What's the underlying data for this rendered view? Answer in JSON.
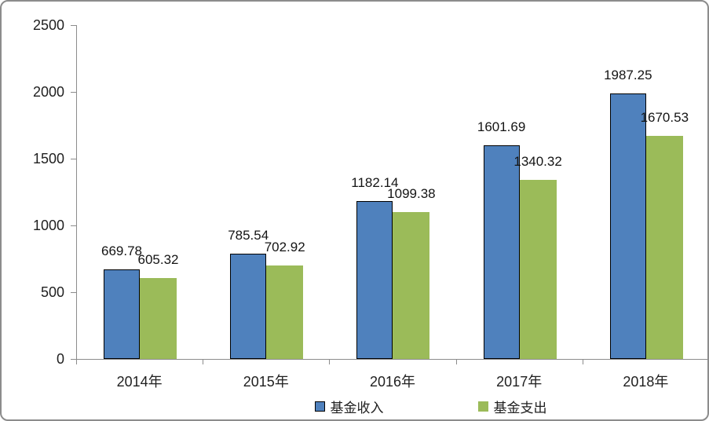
{
  "chart_data": {
    "type": "bar",
    "title": "",
    "categories": [
      "2014年",
      "2015年",
      "2016年",
      "2017年",
      "2018年"
    ],
    "series": [
      {
        "name": "基金收入",
        "color": "#4f81bd",
        "border_color": "#000000",
        "values": [
          669.78,
          785.54,
          1182.14,
          1601.69,
          1987.25
        ],
        "labels": [
          "669.78",
          "785.54",
          "1182.14",
          "1601.69",
          "1987.25"
        ]
      },
      {
        "name": "基金支出",
        "color": "#9bbb59",
        "border_color": null,
        "values": [
          605.32,
          702.92,
          1099.38,
          1340.32,
          1670.53
        ],
        "labels": [
          "605.32",
          "702.92",
          "1099.38",
          "1340.32",
          "1670.53"
        ]
      }
    ],
    "y_ticks": [
      "0",
      "500",
      "1000",
      "1500",
      "2000",
      "2500"
    ],
    "ylim": [
      0,
      2500
    ],
    "xlabel": "",
    "ylabel": "",
    "grid": false,
    "data_labels": true,
    "legend": {
      "position": "bottom",
      "entries": [
        "基金收入",
        "基金支出"
      ]
    },
    "axis_color": "#8c8c8c",
    "text_color": "#1f1f1f"
  }
}
